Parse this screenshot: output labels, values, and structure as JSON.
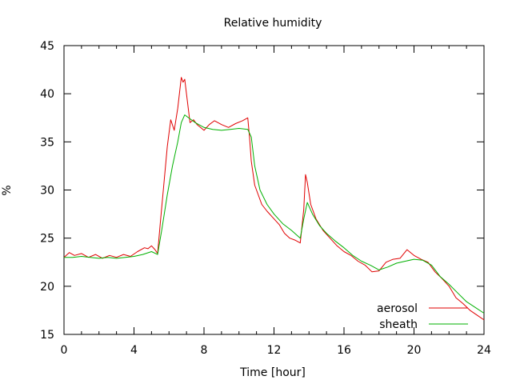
{
  "chart_data": {
    "type": "line",
    "title": "Relative humidity",
    "xlabel": "Time [hour]",
    "ylabel": "%",
    "xlim": [
      0,
      24
    ],
    "ylim": [
      15,
      45
    ],
    "x_ticks": [
      0,
      4,
      8,
      12,
      16,
      20,
      24
    ],
    "y_ticks": [
      15,
      20,
      25,
      30,
      35,
      40,
      45
    ],
    "grid": false,
    "legend_position": "bottom-right",
    "series": [
      {
        "name": "aerosol",
        "color": "#e00000",
        "x": [
          0,
          0.3,
          0.6,
          1.0,
          1.4,
          1.8,
          2.2,
          2.6,
          3.0,
          3.4,
          3.8,
          4.2,
          4.6,
          4.8,
          5.0,
          5.2,
          5.35,
          5.5,
          5.7,
          5.9,
          6.1,
          6.3,
          6.5,
          6.7,
          6.8,
          6.9,
          7.0,
          7.2,
          7.4,
          7.6,
          7.8,
          8.0,
          8.3,
          8.6,
          9.0,
          9.4,
          9.8,
          10.2,
          10.5,
          10.6,
          10.7,
          10.9,
          11.1,
          11.3,
          11.6,
          12.0,
          12.3,
          12.6,
          12.9,
          13.2,
          13.5,
          13.7,
          13.8,
          13.9,
          14.1,
          14.4,
          14.8,
          15.2,
          15.6,
          16.0,
          16.4,
          16.8,
          17.2,
          17.6,
          18.0,
          18.4,
          18.8,
          19.2,
          19.6,
          20.0,
          20.4,
          20.8,
          21.2,
          21.6,
          22.0,
          22.4,
          22.8,
          23.2,
          23.6,
          24.0
        ],
        "values": [
          23.0,
          23.5,
          23.2,
          23.4,
          23.0,
          23.3,
          22.9,
          23.2,
          23.0,
          23.3,
          23.1,
          23.6,
          24.0,
          23.9,
          24.2,
          23.8,
          23.4,
          26.5,
          30.5,
          34.5,
          37.3,
          36.2,
          38.5,
          41.7,
          41.2,
          41.5,
          40.0,
          37.0,
          37.3,
          36.8,
          36.5,
          36.2,
          36.8,
          37.2,
          36.8,
          36.5,
          36.9,
          37.2,
          37.5,
          35.5,
          33.0,
          30.5,
          29.5,
          28.5,
          27.8,
          27.0,
          26.4,
          25.5,
          25.0,
          24.8,
          24.5,
          28.0,
          31.6,
          30.8,
          28.5,
          27.0,
          25.8,
          25.0,
          24.2,
          23.6,
          23.2,
          22.6,
          22.2,
          21.5,
          21.6,
          22.5,
          22.8,
          22.9,
          23.8,
          23.2,
          22.8,
          22.5,
          21.5,
          20.8,
          20.0,
          18.8,
          18.2,
          17.5,
          17.0,
          16.5
        ]
      },
      {
        "name": "sheath",
        "color": "#00b000",
        "x": [
          0,
          0.5,
          1.0,
          1.5,
          2.0,
          2.5,
          3.0,
          3.5,
          4.0,
          4.5,
          5.0,
          5.35,
          5.6,
          5.9,
          6.2,
          6.5,
          6.7,
          6.9,
          7.2,
          7.5,
          8.0,
          8.5,
          9.0,
          9.5,
          10.0,
          10.5,
          10.7,
          10.9,
          11.2,
          11.6,
          12.0,
          12.5,
          13.0,
          13.5,
          13.7,
          13.9,
          14.2,
          14.6,
          15.0,
          15.5,
          16.0,
          16.5,
          17.0,
          17.5,
          18.0,
          18.5,
          19.0,
          19.5,
          20.0,
          20.5,
          21.0,
          21.5,
          22.0,
          22.5,
          23.0,
          23.5,
          24.0
        ],
        "values": [
          23.0,
          23.0,
          23.1,
          23.0,
          22.9,
          23.0,
          22.9,
          23.0,
          23.1,
          23.3,
          23.6,
          23.3,
          26.0,
          29.5,
          32.5,
          35.0,
          37.0,
          37.8,
          37.4,
          37.0,
          36.5,
          36.3,
          36.2,
          36.3,
          36.4,
          36.3,
          35.5,
          32.5,
          30.0,
          28.5,
          27.5,
          26.5,
          25.8,
          25.0,
          27.0,
          28.7,
          27.5,
          26.3,
          25.5,
          24.7,
          24.0,
          23.2,
          22.6,
          22.2,
          21.7,
          22.0,
          22.4,
          22.6,
          22.8,
          22.7,
          22.2,
          21.0,
          20.2,
          19.3,
          18.4,
          17.8,
          17.2
        ]
      }
    ]
  }
}
